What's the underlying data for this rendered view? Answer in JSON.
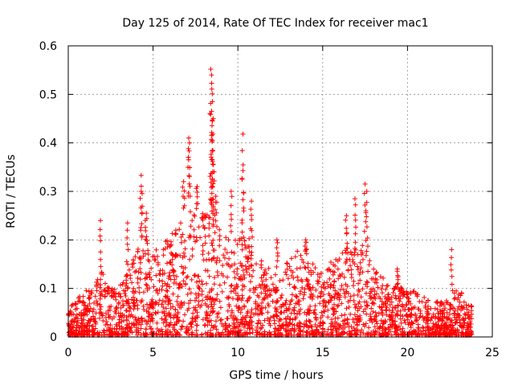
{
  "chart_data": {
    "type": "scatter",
    "title": "Day 125 of 2014, Rate Of TEC Index for receiver mac1",
    "xlabel": "GPS time / hours",
    "ylabel": "ROTI / TECUs",
    "xlim": [
      0,
      25
    ],
    "ylim": [
      0,
      0.6
    ],
    "x_ticks": [
      0,
      5,
      10,
      15,
      20,
      25
    ],
    "y_ticks": [
      0,
      0.1,
      0.2,
      0.3,
      0.4,
      0.5,
      0.6
    ],
    "grid": true,
    "marker": "+",
    "color": "#ff0000",
    "envelope": {
      "description": "approximate local spread of the dense point cloud (upper band value vs time)",
      "x": [
        0,
        0.5,
        1,
        1.5,
        2,
        2.5,
        3,
        3.5,
        4,
        4.5,
        5,
        5.5,
        6,
        6.5,
        7,
        7.5,
        8,
        8.5,
        9,
        9.5,
        10,
        10.5,
        11,
        11.5,
        12,
        12.5,
        13,
        13.5,
        14,
        14.5,
        15,
        15.5,
        16,
        16.5,
        17,
        17.5,
        18,
        18.5,
        19,
        19.5,
        20,
        20.5,
        21,
        21.5,
        22,
        22.5,
        23,
        23.5,
        23.8
      ],
      "y": [
        0.06,
        0.08,
        0.09,
        0.1,
        0.14,
        0.1,
        0.1,
        0.13,
        0.17,
        0.2,
        0.17,
        0.18,
        0.2,
        0.22,
        0.28,
        0.26,
        0.24,
        0.24,
        0.22,
        0.2,
        0.2,
        0.2,
        0.18,
        0.15,
        0.14,
        0.14,
        0.15,
        0.17,
        0.17,
        0.14,
        0.13,
        0.15,
        0.16,
        0.18,
        0.18,
        0.18,
        0.14,
        0.12,
        0.1,
        0.1,
        0.09,
        0.09,
        0.08,
        0.07,
        0.07,
        0.08,
        0.1,
        0.07,
        0.06
      ]
    },
    "peaks": [
      {
        "x": 4.3,
        "y": 0.333
      },
      {
        "x": 4.3,
        "y": 0.3
      },
      {
        "x": 7.1,
        "y": 0.41
      },
      {
        "x": 7.15,
        "y": 0.4
      },
      {
        "x": 8.4,
        "y": 0.552
      },
      {
        "x": 8.45,
        "y": 0.54
      },
      {
        "x": 8.45,
        "y": 0.523
      },
      {
        "x": 8.5,
        "y": 0.485
      },
      {
        "x": 8.45,
        "y": 0.465
      },
      {
        "x": 8.5,
        "y": 0.445
      },
      {
        "x": 8.5,
        "y": 0.405
      },
      {
        "x": 8.55,
        "y": 0.355
      },
      {
        "x": 10.3,
        "y": 0.418
      },
      {
        "x": 10.3,
        "y": 0.343
      },
      {
        "x": 1.9,
        "y": 0.24
      },
      {
        "x": 3.5,
        "y": 0.235
      },
      {
        "x": 4.6,
        "y": 0.255
      },
      {
        "x": 6.8,
        "y": 0.32
      },
      {
        "x": 7.6,
        "y": 0.31
      },
      {
        "x": 8.7,
        "y": 0.29
      },
      {
        "x": 9.6,
        "y": 0.3
      },
      {
        "x": 10.8,
        "y": 0.28
      },
      {
        "x": 16.4,
        "y": 0.25
      },
      {
        "x": 16.9,
        "y": 0.285
      },
      {
        "x": 17.5,
        "y": 0.315
      },
      {
        "x": 17.6,
        "y": 0.3
      },
      {
        "x": 22.6,
        "y": 0.18
      },
      {
        "x": 19.4,
        "y": 0.14
      },
      {
        "x": 12.3,
        "y": 0.2
      },
      {
        "x": 14.0,
        "y": 0.2
      }
    ]
  }
}
